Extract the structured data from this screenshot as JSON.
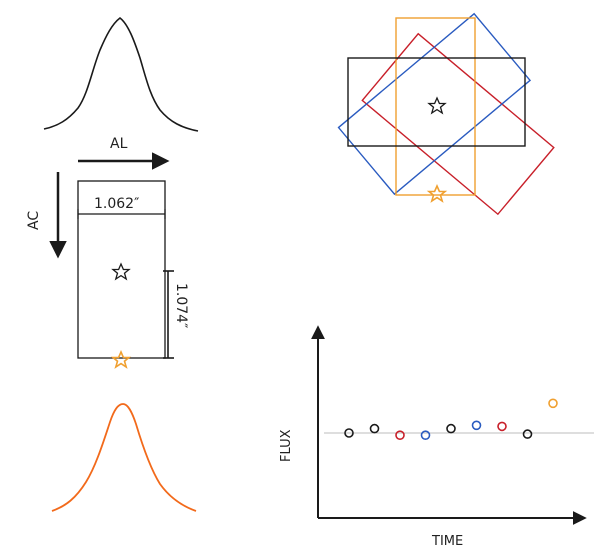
{
  "labels": {
    "al": "AL",
    "ac": "AC",
    "width": "1.062″",
    "height": "1.074″",
    "y_axis": "FLUX",
    "x_axis": "TIME"
  },
  "colors": {
    "black": "#1a1a1a",
    "red": "#c8202a",
    "blue": "#2a5bc0",
    "orange": "#f0a030",
    "curve_orange": "#f26a1b",
    "baseline": "#bdbdbd"
  },
  "chart_data": {
    "type": "scatter",
    "xlabel": "TIME",
    "ylabel": "FLUX",
    "points": [
      {
        "x": 1,
        "y": 0.0,
        "color": "black"
      },
      {
        "x": 2,
        "y": 0.2,
        "color": "black"
      },
      {
        "x": 3,
        "y": -0.1,
        "color": "red"
      },
      {
        "x": 4,
        "y": -0.1,
        "color": "blue"
      },
      {
        "x": 5,
        "y": 0.2,
        "color": "black"
      },
      {
        "x": 6,
        "y": 0.35,
        "color": "blue"
      },
      {
        "x": 7,
        "y": 0.3,
        "color": "red"
      },
      {
        "x": 8,
        "y": -0.05,
        "color": "black"
      },
      {
        "x": 9,
        "y": 1.35,
        "color": "orange"
      }
    ]
  }
}
